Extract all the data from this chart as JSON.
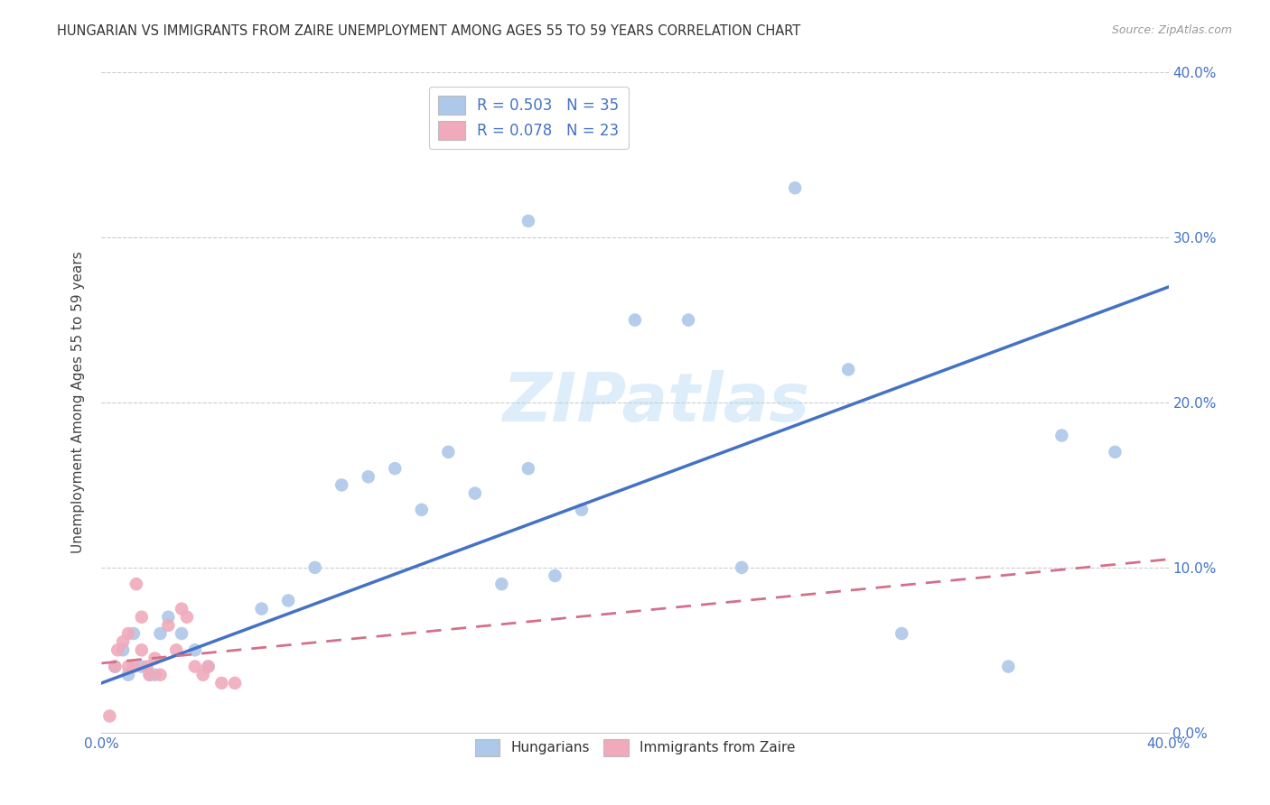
{
  "title": "HUNGARIAN VS IMMIGRANTS FROM ZAIRE UNEMPLOYMENT AMONG AGES 55 TO 59 YEARS CORRELATION CHART",
  "source": "Source: ZipAtlas.com",
  "ylabel": "Unemployment Among Ages 55 to 59 years",
  "xlim": [
    0.0,
    0.4
  ],
  "ylim": [
    0.0,
    0.4
  ],
  "blue_R": 0.503,
  "blue_N": 35,
  "pink_R": 0.078,
  "pink_N": 23,
  "blue_color": "#adc8e8",
  "pink_color": "#f0aabb",
  "blue_line_color": "#4472c4",
  "pink_line_color": "#d4708a",
  "watermark": "ZIPatlas",
  "blue_line_x0": 0.0,
  "blue_line_y0": 0.03,
  "blue_line_x1": 0.4,
  "blue_line_y1": 0.27,
  "pink_line_x0": 0.0,
  "pink_line_y0": 0.042,
  "pink_line_x1": 0.4,
  "pink_line_y1": 0.105,
  "blue_scatter_x": [
    0.005,
    0.008,
    0.01,
    0.012,
    0.015,
    0.018,
    0.02,
    0.022,
    0.025,
    0.03,
    0.035,
    0.04,
    0.06,
    0.07,
    0.08,
    0.09,
    0.1,
    0.11,
    0.12,
    0.13,
    0.14,
    0.15,
    0.16,
    0.16,
    0.17,
    0.18,
    0.2,
    0.22,
    0.24,
    0.26,
    0.28,
    0.3,
    0.34,
    0.36,
    0.38
  ],
  "blue_scatter_y": [
    0.04,
    0.05,
    0.035,
    0.06,
    0.04,
    0.035,
    0.035,
    0.06,
    0.07,
    0.06,
    0.05,
    0.04,
    0.075,
    0.08,
    0.1,
    0.15,
    0.155,
    0.16,
    0.135,
    0.17,
    0.145,
    0.09,
    0.16,
    0.31,
    0.095,
    0.135,
    0.25,
    0.25,
    0.1,
    0.33,
    0.22,
    0.06,
    0.04,
    0.18,
    0.17
  ],
  "pink_scatter_x": [
    0.003,
    0.005,
    0.006,
    0.008,
    0.01,
    0.01,
    0.012,
    0.013,
    0.015,
    0.015,
    0.017,
    0.018,
    0.02,
    0.022,
    0.025,
    0.028,
    0.03,
    0.032,
    0.035,
    0.038,
    0.04,
    0.045,
    0.05
  ],
  "pink_scatter_y": [
    0.01,
    0.04,
    0.05,
    0.055,
    0.06,
    0.04,
    0.04,
    0.09,
    0.05,
    0.07,
    0.04,
    0.035,
    0.045,
    0.035,
    0.065,
    0.05,
    0.075,
    0.07,
    0.04,
    0.035,
    0.04,
    0.03,
    0.03
  ]
}
